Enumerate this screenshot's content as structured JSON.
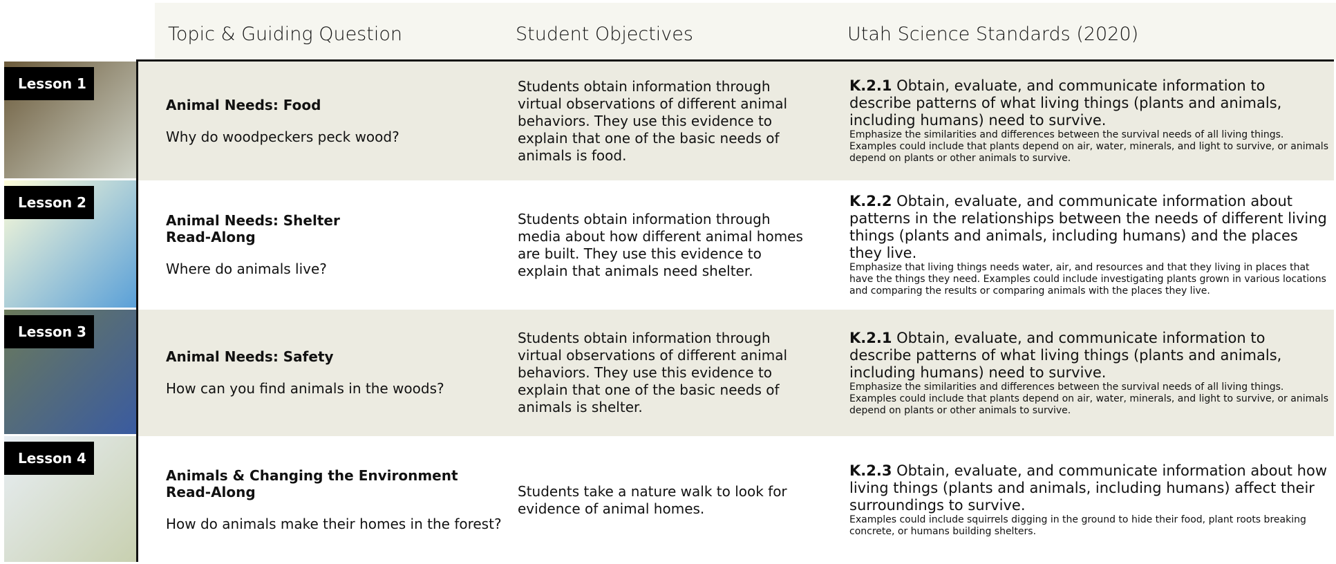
{
  "header": {
    "columns": [
      "Topic & Guiding Question",
      "Student Objectives",
      "Utah Science Standards (2020)"
    ]
  },
  "rows": [
    {
      "lesson": "Lesson 1",
      "title": "Animal Needs: Food",
      "question": "Why do woodpeckers peck wood?",
      "objective": "Students obtain information through virtual observations of different animal behaviors. They use this evidence to explain that one of the basic needs of animals is food.",
      "standard_code": "K.2.1",
      "standard_text": "Obtain, evaluate, and communicate information to describe patterns of what living things (plants and animals, including humans) need to survive.",
      "standard_detail": "Emphasize the similarities and differences between the survival needs of all living things. Examples could include that plants depend on air, water, minerals, and light to survive, or animals depend on plants or other animals to survive."
    },
    {
      "lesson": "Lesson 2",
      "title": "Animal Needs: Shelter",
      "subtitle": "Read-Along",
      "question": "Where do animals live?",
      "objective": "Students obtain information through media about how different animal homes are built. They use this evidence to explain that animals need shelter.",
      "standard_code": "K.2.2",
      "standard_text": "Obtain, evaluate, and communicate information about patterns in the relationships between the needs of different living things (plants and animals, including humans) and the places they live.",
      "standard_detail": "Emphasize that living things needs water, air, and resources and that they living in places that have the things they need. Examples could include investigating plants grown in various locations and comparing the results or comparing animals with the places they live."
    },
    {
      "lesson": "Lesson 3",
      "title": "Animal Needs: Safety",
      "question": "How can you find animals in the woods?",
      "objective": "Students obtain information through virtual observations of different animal behaviors. They use this evidence to explain that one of the basic needs of animals is shelter.",
      "standard_code": "K.2.1",
      "standard_text": "Obtain, evaluate, and communicate information to describe patterns of what living things (plants and animals, including humans) need to survive.",
      "standard_detail": "Emphasize the similarities and differences between the survival needs of all living things. Examples could include that plants depend on air, water, minerals, and light to survive, or animals depend on plants or other animals to survive."
    },
    {
      "lesson": "Lesson 4",
      "title": "Animals & Changing the Environment",
      "subtitle": "Read-Along",
      "question": "How do animals make their homes in the forest?",
      "objective": "Students take a nature walk to look for evidence of animal homes.",
      "standard_code": "K.2.3",
      "standard_text": "Obtain, evaluate, and communicate information about how living things (plants and animals, including humans) affect their surroundings to survive.",
      "standard_detail": "Examples could include squirrels digging in the ground to hide their food, plant roots breaking concrete, or humans building shelters."
    }
  ]
}
